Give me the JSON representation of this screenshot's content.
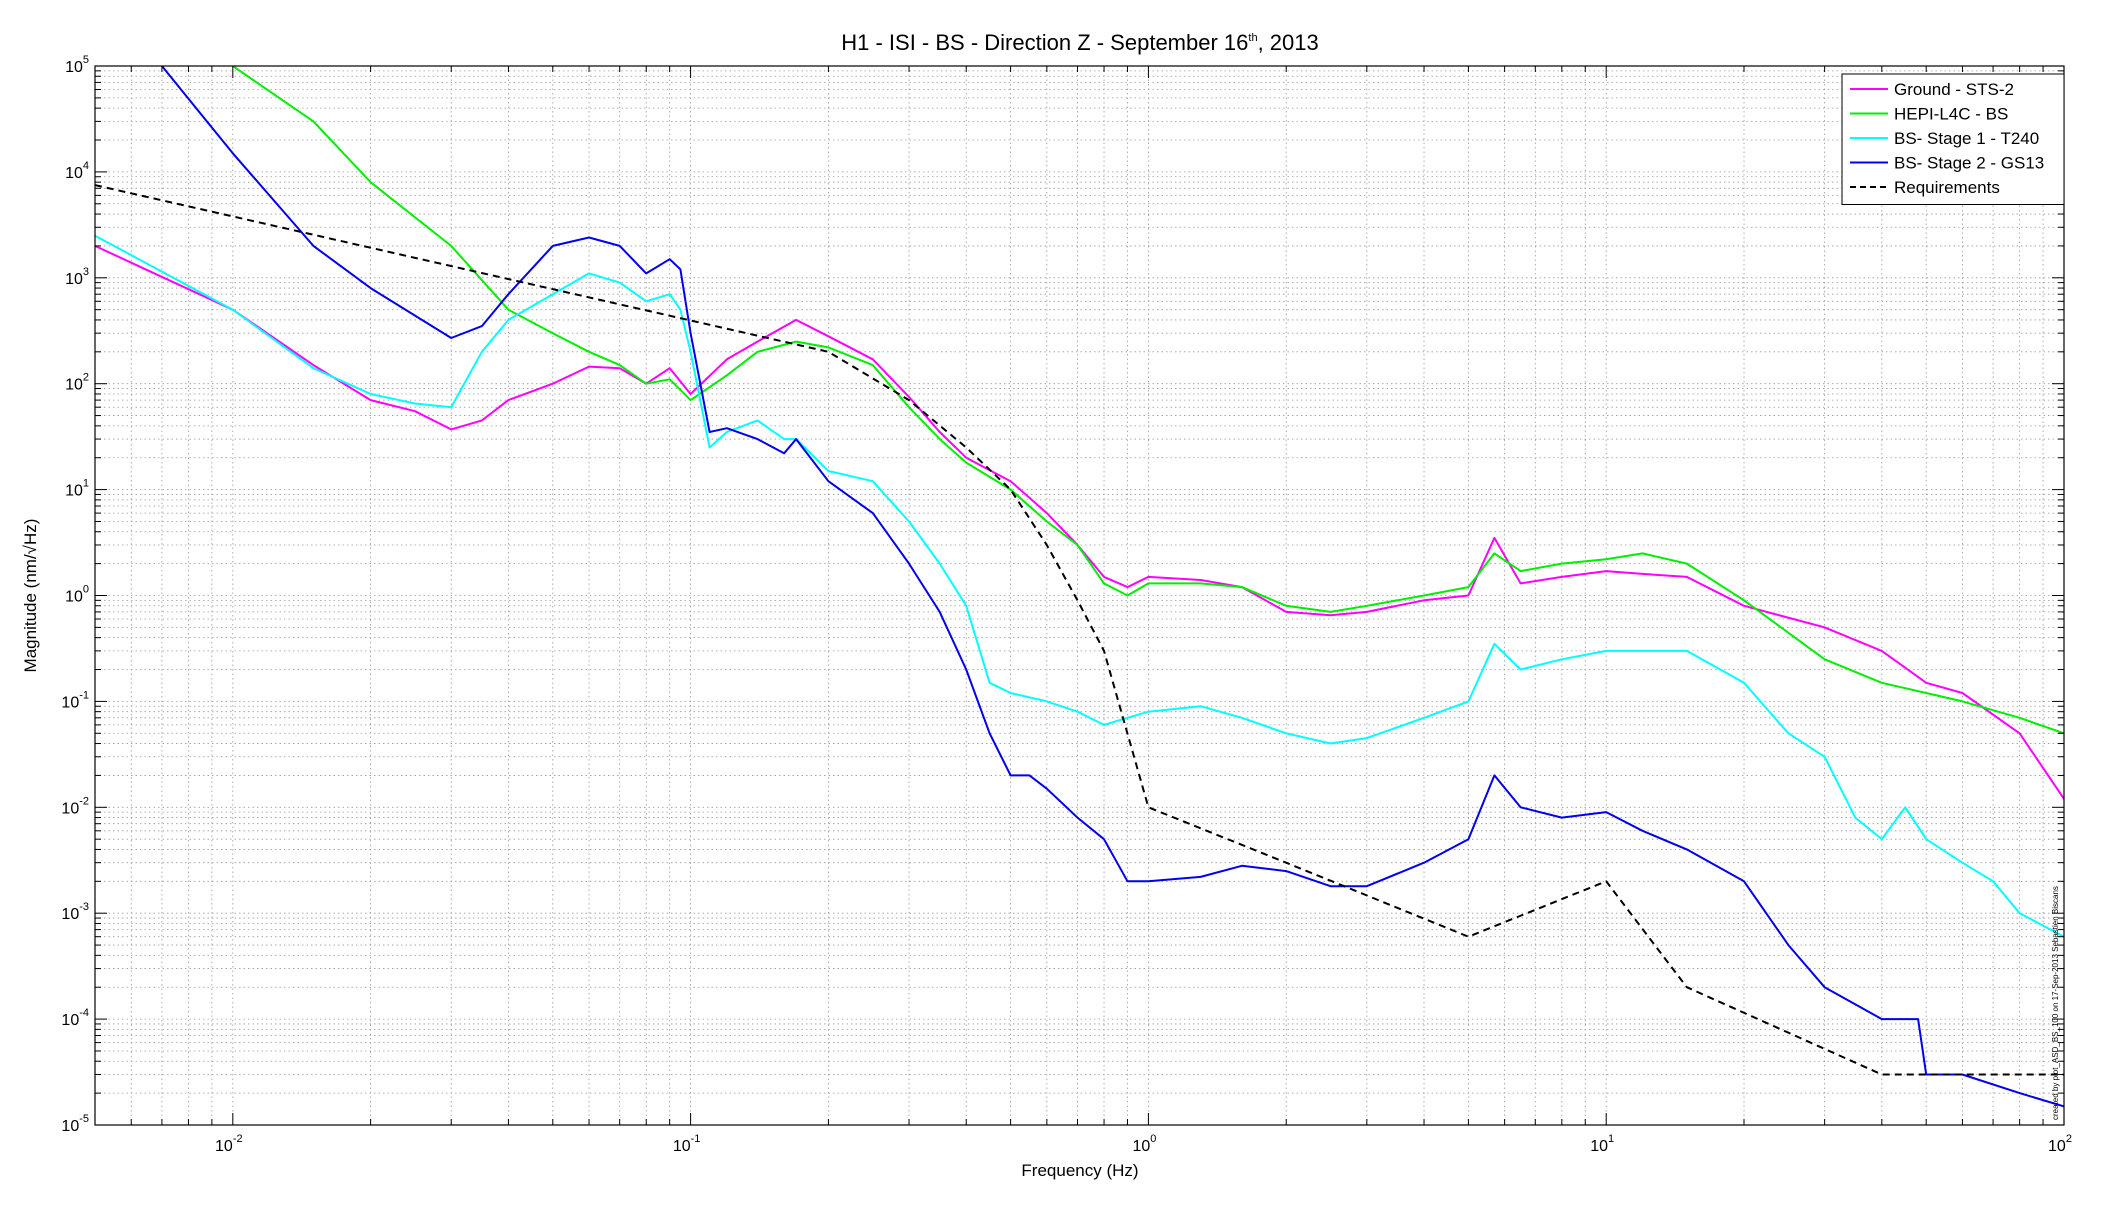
{
  "chart_data": {
    "type": "line",
    "title_main": "H1 - ISI - BS - Direction Z - September 16",
    "title_sup": "th",
    "title_tail": ", 2013",
    "xlabel": "Frequency (Hz)",
    "ylabel": "Magnitude (nm/√Hz)",
    "xscale": "log",
    "yscale": "log",
    "xlim": [
      0.005,
      100
    ],
    "ylim": [
      1e-05,
      100000
    ],
    "grid": true,
    "legend_position": "top-right",
    "x_ticks": [
      {
        "base": "10",
        "exp": "-2",
        "value": 0.01
      },
      {
        "base": "10",
        "exp": "-1",
        "value": 0.1
      },
      {
        "base": "10",
        "exp": "0",
        "value": 1
      },
      {
        "base": "10",
        "exp": "1",
        "value": 10
      },
      {
        "base": "10",
        "exp": "2",
        "value": 100
      }
    ],
    "y_ticks": [
      {
        "base": "10",
        "exp": "5",
        "value": 100000
      },
      {
        "base": "10",
        "exp": "4",
        "value": 10000
      },
      {
        "base": "10",
        "exp": "3",
        "value": 1000
      },
      {
        "base": "10",
        "exp": "2",
        "value": 100
      },
      {
        "base": "10",
        "exp": "1",
        "value": 10
      },
      {
        "base": "10",
        "exp": "0",
        "value": 1
      },
      {
        "base": "10",
        "exp": "-1",
        "value": 0.1
      },
      {
        "base": "10",
        "exp": "-2",
        "value": 0.01
      },
      {
        "base": "10",
        "exp": "-3",
        "value": 0.001
      },
      {
        "base": "10",
        "exp": "-4",
        "value": 0.0001
      },
      {
        "base": "10",
        "exp": "-5",
        "value": 1e-05
      }
    ],
    "side_note": "created by plot_ASD_BS_100 on 17-Sep-2013 Sebastien Biscans",
    "series": [
      {
        "name": "Ground - STS-2",
        "color": "#ff00ff",
        "dash": false,
        "points": [
          [
            0.005,
            2000
          ],
          [
            0.01,
            500
          ],
          [
            0.015,
            150
          ],
          [
            0.02,
            70
          ],
          [
            0.025,
            55
          ],
          [
            0.03,
            37
          ],
          [
            0.035,
            45
          ],
          [
            0.04,
            70
          ],
          [
            0.05,
            100
          ],
          [
            0.06,
            145
          ],
          [
            0.07,
            140
          ],
          [
            0.08,
            100
          ],
          [
            0.09,
            140
          ],
          [
            0.1,
            80
          ],
          [
            0.12,
            170
          ],
          [
            0.14,
            250
          ],
          [
            0.17,
            400
          ],
          [
            0.2,
            280
          ],
          [
            0.25,
            170
          ],
          [
            0.3,
            75
          ],
          [
            0.35,
            35
          ],
          [
            0.4,
            20
          ],
          [
            0.5,
            12
          ],
          [
            0.6,
            6
          ],
          [
            0.7,
            3
          ],
          [
            0.8,
            1.5
          ],
          [
            0.9,
            1.2
          ],
          [
            1,
            1.5
          ],
          [
            1.3,
            1.4
          ],
          [
            1.6,
            1.2
          ],
          [
            2,
            0.7
          ],
          [
            2.5,
            0.65
          ],
          [
            3,
            0.7
          ],
          [
            4,
            0.9
          ],
          [
            5,
            1.0
          ],
          [
            5.7,
            3.5
          ],
          [
            6.5,
            1.3
          ],
          [
            8,
            1.5
          ],
          [
            10,
            1.7
          ],
          [
            12,
            1.6
          ],
          [
            15,
            1.5
          ],
          [
            20,
            0.8
          ],
          [
            30,
            0.5
          ],
          [
            40,
            0.3
          ],
          [
            50,
            0.15
          ],
          [
            60,
            0.12
          ],
          [
            80,
            0.05
          ],
          [
            100,
            0.012
          ]
        ]
      },
      {
        "name": "HEPI-L4C - BS",
        "color": "#00ee00",
        "dash": false,
        "points": [
          [
            0.01,
            100000
          ],
          [
            0.015,
            30000
          ],
          [
            0.02,
            8000
          ],
          [
            0.03,
            2000
          ],
          [
            0.04,
            500
          ],
          [
            0.05,
            300
          ],
          [
            0.06,
            200
          ],
          [
            0.07,
            150
          ],
          [
            0.08,
            100
          ],
          [
            0.09,
            110
          ],
          [
            0.1,
            70
          ],
          [
            0.12,
            120
          ],
          [
            0.14,
            200
          ],
          [
            0.17,
            250
          ],
          [
            0.2,
            220
          ],
          [
            0.25,
            150
          ],
          [
            0.3,
            60
          ],
          [
            0.35,
            30
          ],
          [
            0.4,
            18
          ],
          [
            0.5,
            10
          ],
          [
            0.6,
            5
          ],
          [
            0.7,
            3
          ],
          [
            0.8,
            1.3
          ],
          [
            0.9,
            1.0
          ],
          [
            1,
            1.3
          ],
          [
            1.3,
            1.3
          ],
          [
            1.6,
            1.2
          ],
          [
            2,
            0.8
          ],
          [
            2.5,
            0.7
          ],
          [
            3,
            0.8
          ],
          [
            4,
            1.0
          ],
          [
            5,
            1.2
          ],
          [
            5.7,
            2.5
          ],
          [
            6.5,
            1.7
          ],
          [
            8,
            2.0
          ],
          [
            10,
            2.2
          ],
          [
            12,
            2.5
          ],
          [
            15,
            2.0
          ],
          [
            20,
            0.9
          ],
          [
            30,
            0.25
          ],
          [
            40,
            0.15
          ],
          [
            50,
            0.12
          ],
          [
            60,
            0.1
          ],
          [
            80,
            0.07
          ],
          [
            100,
            0.05
          ]
        ]
      },
      {
        "name": "BS- Stage 1 - T240",
        "color": "#00ffff",
        "dash": false,
        "points": [
          [
            0.005,
            2500
          ],
          [
            0.01,
            500
          ],
          [
            0.015,
            140
          ],
          [
            0.02,
            80
          ],
          [
            0.025,
            65
          ],
          [
            0.03,
            60
          ],
          [
            0.035,
            200
          ],
          [
            0.04,
            400
          ],
          [
            0.05,
            700
          ],
          [
            0.06,
            1100
          ],
          [
            0.07,
            900
          ],
          [
            0.08,
            600
          ],
          [
            0.09,
            700
          ],
          [
            0.095,
            500
          ],
          [
            0.1,
            200
          ],
          [
            0.11,
            25
          ],
          [
            0.12,
            35
          ],
          [
            0.14,
            45
          ],
          [
            0.16,
            30
          ],
          [
            0.17,
            30
          ],
          [
            0.2,
            15
          ],
          [
            0.25,
            12
          ],
          [
            0.3,
            5
          ],
          [
            0.35,
            2
          ],
          [
            0.4,
            0.8
          ],
          [
            0.45,
            0.15
          ],
          [
            0.5,
            0.12
          ],
          [
            0.6,
            0.1
          ],
          [
            0.7,
            0.08
          ],
          [
            0.8,
            0.06
          ],
          [
            0.9,
            0.07
          ],
          [
            1,
            0.08
          ],
          [
            1.3,
            0.09
          ],
          [
            1.6,
            0.07
          ],
          [
            2,
            0.05
          ],
          [
            2.5,
            0.04
          ],
          [
            3,
            0.045
          ],
          [
            4,
            0.07
          ],
          [
            5,
            0.1
          ],
          [
            5.7,
            0.35
          ],
          [
            6.5,
            0.2
          ],
          [
            8,
            0.25
          ],
          [
            10,
            0.3
          ],
          [
            12,
            0.3
          ],
          [
            15,
            0.3
          ],
          [
            20,
            0.15
          ],
          [
            25,
            0.05
          ],
          [
            30,
            0.03
          ],
          [
            35,
            0.008
          ],
          [
            40,
            0.005
          ],
          [
            45,
            0.01
          ],
          [
            50,
            0.005
          ],
          [
            60,
            0.003
          ],
          [
            70,
            0.002
          ],
          [
            80,
            0.001
          ],
          [
            100,
            0.0006
          ]
        ]
      },
      {
        "name": "BS- Stage 2 - GS13",
        "color": "#0000ee",
        "dash": false,
        "points": [
          [
            0.007,
            100000
          ],
          [
            0.01,
            15000
          ],
          [
            0.015,
            2000
          ],
          [
            0.02,
            800
          ],
          [
            0.03,
            270
          ],
          [
            0.035,
            350
          ],
          [
            0.04,
            700
          ],
          [
            0.05,
            2000
          ],
          [
            0.06,
            2400
          ],
          [
            0.07,
            2000
          ],
          [
            0.08,
            1100
          ],
          [
            0.09,
            1500
          ],
          [
            0.095,
            1200
          ],
          [
            0.1,
            300
          ],
          [
            0.11,
            35
          ],
          [
            0.12,
            38
          ],
          [
            0.14,
            30
          ],
          [
            0.16,
            22
          ],
          [
            0.17,
            30
          ],
          [
            0.2,
            12
          ],
          [
            0.25,
            6
          ],
          [
            0.3,
            2
          ],
          [
            0.35,
            0.7
          ],
          [
            0.4,
            0.2
          ],
          [
            0.45,
            0.05
          ],
          [
            0.5,
            0.02
          ],
          [
            0.55,
            0.02
          ],
          [
            0.6,
            0.015
          ],
          [
            0.7,
            0.008
          ],
          [
            0.8,
            0.005
          ],
          [
            0.9,
            0.002
          ],
          [
            1,
            0.002
          ],
          [
            1.3,
            0.0022
          ],
          [
            1.6,
            0.0028
          ],
          [
            2,
            0.0025
          ],
          [
            2.5,
            0.0018
          ],
          [
            3,
            0.0018
          ],
          [
            4,
            0.003
          ],
          [
            5,
            0.005
          ],
          [
            5.7,
            0.02
          ],
          [
            6.5,
            0.01
          ],
          [
            8,
            0.008
          ],
          [
            10,
            0.009
          ],
          [
            12,
            0.006
          ],
          [
            15,
            0.004
          ],
          [
            20,
            0.002
          ],
          [
            25,
            0.0005
          ],
          [
            30,
            0.0002
          ],
          [
            40,
            0.0001
          ],
          [
            48,
            0.0001
          ],
          [
            50,
            3e-05
          ],
          [
            60,
            3e-05
          ],
          [
            80,
            2e-05
          ],
          [
            100,
            1.5e-05
          ]
        ]
      },
      {
        "name": "Requirements",
        "color": "#000000",
        "dash": true,
        "points": [
          [
            0.005,
            7500
          ],
          [
            0.2,
            200
          ],
          [
            0.3,
            70
          ],
          [
            0.4,
            25
          ],
          [
            0.5,
            10
          ],
          [
            0.6,
            3
          ],
          [
            0.7,
            0.9
          ],
          [
            0.8,
            0.3
          ],
          [
            1,
            0.01
          ],
          [
            2,
            0.003
          ],
          [
            5,
            0.0006
          ],
          [
            10,
            0.002
          ],
          [
            15,
            0.0002
          ],
          [
            40,
            3e-05
          ],
          [
            100,
            3e-05
          ]
        ]
      }
    ]
  }
}
